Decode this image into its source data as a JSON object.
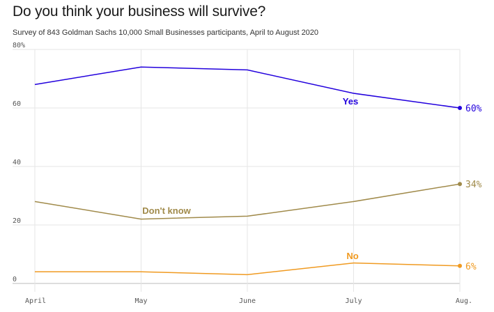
{
  "header": {
    "title": "Do you think your business will survive?",
    "subtitle": "Survey of 843 Goldman Sachs 10,000 Small Businesses participants, April to August 2020"
  },
  "chart_data": {
    "type": "line",
    "title": "Do you think your business will survive?",
    "subtitle": "Survey of 843 Goldman Sachs 10,000 Small Businesses participants, April to August 2020",
    "categories": [
      "April",
      "May",
      "June",
      "July",
      "Aug."
    ],
    "ylim": [
      0,
      80
    ],
    "yticks": [
      0,
      20,
      40,
      60,
      80
    ],
    "ytick_labels": [
      "0",
      "20",
      "40",
      "60",
      "80%"
    ],
    "grid": true,
    "xlabel": "",
    "ylabel": "",
    "series": [
      {
        "name": "Yes",
        "values": [
          68,
          74,
          73,
          65,
          60
        ],
        "end_label": "60%",
        "color": "#2200dd"
      },
      {
        "name": "Don't know",
        "values": [
          28,
          22,
          23,
          28,
          34
        ],
        "end_label": "34%",
        "color": "#a08a4a"
      },
      {
        "name": "No",
        "values": [
          4,
          4,
          3,
          7,
          6
        ],
        "end_label": "6%",
        "color": "#f09a20"
      }
    ]
  }
}
